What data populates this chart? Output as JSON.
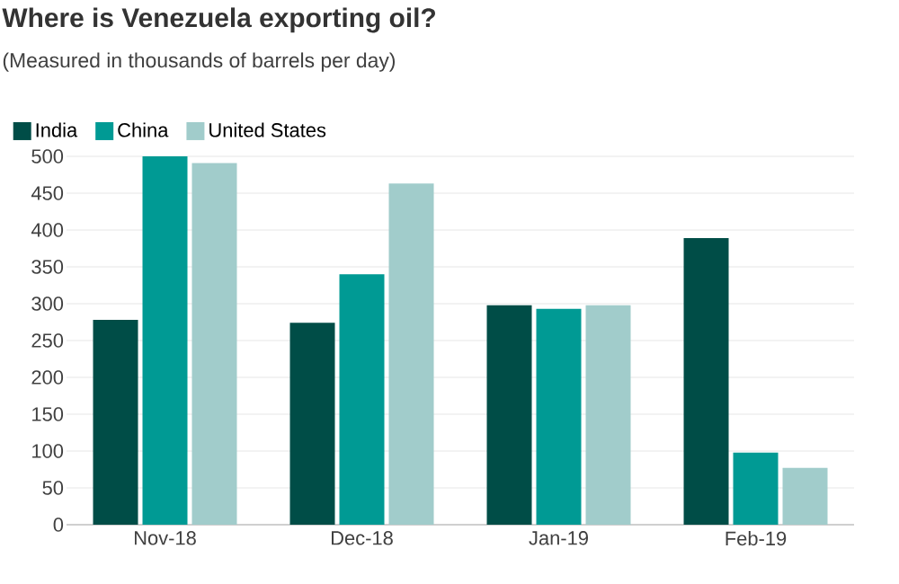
{
  "chart_data": {
    "type": "bar",
    "title": "Where is Venezuela exporting oil?",
    "subtitle": "(Measured in thousands of barrels per day)",
    "categories": [
      "Nov-18",
      "Dec-18",
      "Jan-19",
      "Feb-19"
    ],
    "series": [
      {
        "name": "India",
        "color": "#004d47",
        "values": [
          278,
          274,
          298,
          389
        ]
      },
      {
        "name": "China",
        "color": "#009a94",
        "values": [
          500,
          340,
          293,
          98
        ]
      },
      {
        "name": "United States",
        "color": "#a1cccb",
        "values": [
          491,
          463,
          298,
          77
        ]
      }
    ],
    "ylim": [
      0,
      500
    ],
    "yticks": [
      0,
      50,
      100,
      150,
      200,
      250,
      300,
      350,
      400,
      450,
      500
    ],
    "grid": "y",
    "legend": "top left"
  }
}
